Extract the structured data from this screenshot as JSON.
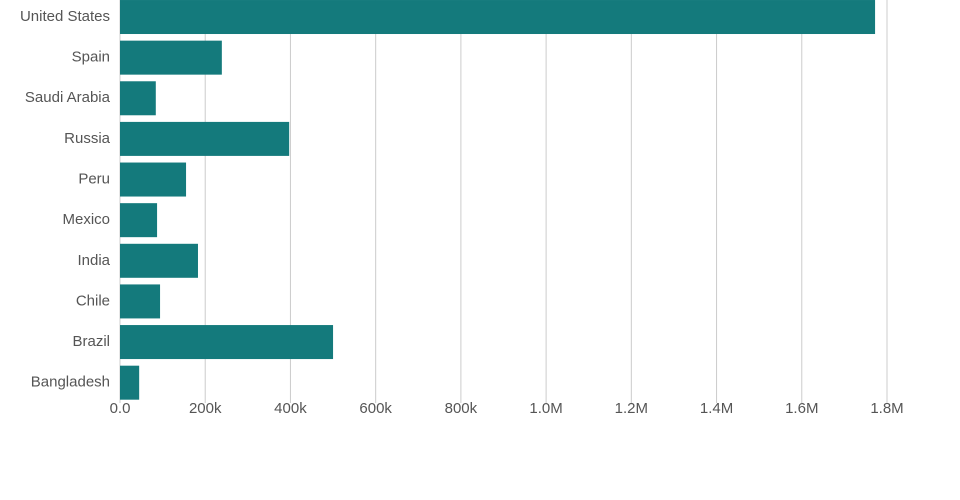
{
  "chart_data": {
    "type": "hbar",
    "categories": [
      "United States",
      "Spain",
      "Saudi Arabia",
      "Russia",
      "Peru",
      "Mexico",
      "India",
      "Chile",
      "Brazil",
      "Bangladesh"
    ],
    "values": [
      1772000,
      239000,
      84000,
      397000,
      155000,
      87000,
      183000,
      94000,
      500000,
      45000
    ],
    "color": "#147a7c",
    "xlim": [
      0,
      1800000
    ],
    "xticks": [
      {
        "value": 0,
        "label": "0.0"
      },
      {
        "value": 200000,
        "label": "200k"
      },
      {
        "value": 400000,
        "label": "400k"
      },
      {
        "value": 600000,
        "label": "600k"
      },
      {
        "value": 800000,
        "label": "800k"
      },
      {
        "value": 1000000,
        "label": "1.0M"
      },
      {
        "value": 1200000,
        "label": "1.2M"
      },
      {
        "value": 1400000,
        "label": "1.4M"
      },
      {
        "value": 1600000,
        "label": "1.6M"
      },
      {
        "value": 1800000,
        "label": "1.8M"
      }
    ],
    "grid": true
  }
}
